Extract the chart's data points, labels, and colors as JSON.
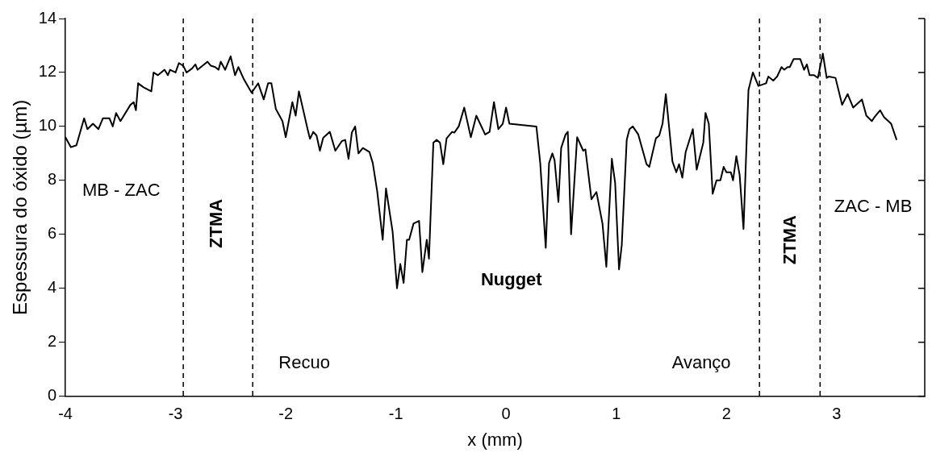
{
  "chart_data": {
    "type": "line",
    "xlabel": "x (mm)",
    "ylabel": "Espessura do óxido (µm)",
    "xlim": [
      -4,
      3.8
    ],
    "xticks": [
      -4,
      -3,
      -2,
      -1,
      0,
      1,
      2,
      3
    ],
    "ylim": [
      0,
      14
    ],
    "yticks": [
      0,
      2,
      4,
      6,
      8,
      10,
      12,
      14
    ],
    "grid": false,
    "legend": false,
    "marker": "none",
    "line_style": "solid",
    "series": [
      {
        "color": "#000000",
        "x": [
          -4,
          -3.95,
          -3.9,
          -3.83,
          -3.8,
          -3.75,
          -3.7,
          -3.66,
          -3.6,
          -3.57,
          -3.54,
          -3.5,
          -3.41,
          -3.38,
          -3.36,
          -3.34,
          -3.29,
          -3.22,
          -3.2,
          -3.16,
          -3.1,
          -3.07,
          -3.05,
          -3.0,
          -2.97,
          -2.93,
          -2.9,
          -2.85,
          -2.82,
          -2.8,
          -2.71,
          -2.68,
          -2.64,
          -2.61,
          -2.59,
          -2.55,
          -2.5,
          -2.46,
          -2.43,
          -2.38,
          -2.31,
          -2.25,
          -2.2,
          -2.16,
          -2.13,
          -2.09,
          -2.03,
          -2.0,
          -1.94,
          -1.91,
          -1.88,
          -1.8,
          -1.78,
          -1.75,
          -1.72,
          -1.69,
          -1.66,
          -1.6,
          -1.55,
          -1.49,
          -1.46,
          -1.43,
          -1.4,
          -1.37,
          -1.34,
          -1.3,
          -1.24,
          -1.21,
          -1.17,
          -1.12,
          -1.09,
          -1.03,
          -0.99,
          -0.96,
          -0.93,
          -0.9,
          -0.88,
          -0.84,
          -0.79,
          -0.76,
          -0.72,
          -0.7,
          -0.66,
          -0.63,
          -0.6,
          -0.57,
          -0.54,
          -0.49,
          -0.47,
          -0.43,
          -0.38,
          -0.32,
          -0.27,
          -0.19,
          -0.15,
          -0.11,
          -0.07,
          -0.03,
          0.0,
          0.03,
          0.275,
          0.31,
          0.36,
          0.39,
          0.42,
          0.44,
          0.475,
          0.5,
          0.54,
          0.56,
          0.59,
          0.645,
          0.7,
          0.72,
          0.775,
          0.82,
          0.875,
          0.91,
          0.96,
          0.99,
          1.025,
          1.05,
          1.095,
          1.12,
          1.15,
          1.2,
          1.275,
          1.3,
          1.36,
          1.39,
          1.42,
          1.45,
          1.51,
          1.545,
          1.57,
          1.6,
          1.63,
          1.695,
          1.73,
          1.79,
          1.81,
          1.84,
          1.875,
          1.91,
          1.945,
          1.975,
          2.0,
          2.04,
          2.06,
          2.09,
          2.12,
          2.155,
          2.2,
          2.24,
          2.29,
          2.36,
          2.38,
          2.425,
          2.46,
          2.5,
          2.525,
          2.555,
          2.575,
          2.61,
          2.67,
          2.705,
          2.73,
          2.755,
          2.795,
          2.83,
          2.875,
          2.91,
          2.93,
          2.99,
          3.05,
          3.1,
          3.15,
          3.23,
          3.27,
          3.32,
          3.345,
          3.395,
          3.43,
          3.495,
          3.545
        ],
        "values": [
          9.6,
          9.23,
          9.3,
          10.3,
          9.9,
          10.1,
          9.9,
          10.3,
          10.3,
          10.0,
          10.5,
          10.2,
          10.8,
          10.9,
          10.6,
          11.6,
          11.45,
          11.3,
          12.0,
          11.9,
          12.1,
          11.9,
          12.1,
          12.0,
          12.35,
          12.25,
          12.0,
          12.15,
          12.3,
          12.1,
          12.4,
          12.25,
          12.2,
          12.1,
          12.4,
          12.1,
          12.6,
          11.9,
          12.2,
          11.75,
          11.25,
          11.6,
          11.0,
          11.6,
          11.6,
          10.65,
          10.2,
          9.6,
          10.9,
          10.4,
          11.3,
          9.87,
          9.54,
          9.8,
          9.66,
          9.1,
          9.58,
          9.8,
          9.1,
          9.46,
          9.5,
          8.8,
          9.77,
          10.0,
          9.0,
          9.2,
          9.05,
          8.64,
          7.6,
          5.8,
          7.7,
          6.1,
          4.0,
          4.9,
          4.2,
          5.8,
          5.8,
          6.4,
          6.5,
          4.6,
          5.8,
          5.1,
          9.4,
          9.5,
          9.4,
          8.6,
          9.56,
          9.8,
          9.77,
          10.0,
          10.7,
          9.6,
          10.4,
          9.7,
          9.8,
          10.9,
          9.9,
          10.1,
          10.7,
          10.1,
          10.0,
          8.64,
          5.5,
          8.64,
          9.0,
          8.75,
          7.2,
          9.2,
          9.7,
          9.8,
          6.0,
          9.6,
          9.1,
          9.15,
          7.3,
          7.57,
          6.4,
          4.8,
          8.8,
          7.9,
          4.7,
          5.6,
          9.5,
          9.9,
          10.0,
          9.7,
          8.6,
          8.5,
          9.56,
          9.66,
          10.1,
          11.2,
          8.7,
          8.3,
          8.6,
          8.1,
          9.05,
          9.9,
          8.4,
          9.4,
          10.5,
          10.1,
          7.5,
          8.0,
          8.0,
          8.5,
          8.3,
          8.3,
          8.0,
          8.9,
          8.2,
          6.2,
          11.35,
          12.0,
          11.5,
          11.6,
          11.85,
          11.7,
          11.85,
          12.2,
          12.1,
          12.2,
          12.2,
          12.5,
          12.5,
          12.1,
          12.3,
          11.9,
          11.9,
          11.8,
          12.7,
          11.8,
          11.85,
          11.8,
          10.8,
          11.2,
          10.7,
          11.0,
          10.4,
          10.2,
          10.35,
          10.6,
          10.35,
          10.1,
          9.5
        ]
      }
    ],
    "ref_lines": [
      {
        "axis": "x",
        "value": -2.93,
        "color": "#000000",
        "line_style": "dashed"
      },
      {
        "axis": "x",
        "value": -2.3,
        "color": "#000000",
        "line_style": "dashed"
      },
      {
        "axis": "x",
        "value": 2.3,
        "color": "#000000",
        "line_style": "dashed"
      },
      {
        "axis": "x",
        "value": 2.85,
        "color": "#000000",
        "line_style": "dashed"
      }
    ],
    "annotations": [
      "MB - ZAC",
      "ZTMA",
      "Recuo",
      "Nugget",
      "Avanço",
      "ZTMA",
      "ZAC - MB"
    ]
  }
}
